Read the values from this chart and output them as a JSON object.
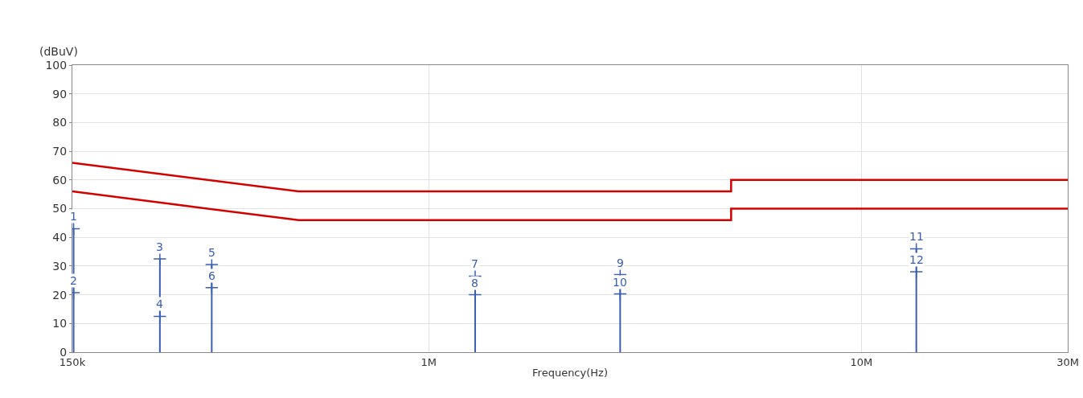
{
  "chart_data": {
    "type": "line",
    "xlabel": "Frequency(Hz)",
    "ylabel": "(dBuV)",
    "log": "x",
    "grid": true,
    "marker": "cross",
    "xlim": [
      150000,
      30000000
    ],
    "xticks": [
      {
        "value": 150000,
        "label": "150k"
      },
      {
        "value": 1000000,
        "label": "1M"
      },
      {
        "value": 10000000,
        "label": "10M"
      },
      {
        "value": 30000000,
        "label": "30M"
      }
    ],
    "ylim": [
      0,
      100
    ],
    "yticks": [
      0,
      10,
      20,
      30,
      40,
      50,
      60,
      70,
      80,
      90,
      100
    ],
    "series": [
      {
        "color": "#d40000",
        "x": [
          150000,
          500000,
          5000000,
          5000000,
          30000000
        ],
        "values": [
          66,
          56,
          56,
          60,
          60
        ],
        "marker": "none"
      },
      {
        "color": "#d40000",
        "x": [
          150000,
          500000,
          5000000,
          5000000,
          30000000
        ],
        "values": [
          56,
          46,
          46,
          50,
          50
        ],
        "marker": "none"
      },
      {
        "type": "lollipop",
        "color": "#3a5fb0",
        "x": [
          151000,
          239000,
          315000,
          1280000,
          2770000,
          13400000
        ],
        "values": [
          43,
          32.5,
          30.5,
          26.5,
          27,
          36
        ]
      },
      {
        "type": "scatter",
        "color": "#3a5fb0",
        "x": [
          151000,
          239000,
          315000,
          1280000,
          2770000,
          13400000
        ],
        "values": [
          20.7,
          12.5,
          22.5,
          20,
          20.3,
          28
        ]
      }
    ],
    "annotations": [
      {
        "text": "1",
        "x": 151000,
        "y": 43
      },
      {
        "text": "2",
        "x": 151000,
        "y": 20.7
      },
      {
        "text": "3",
        "x": 239000,
        "y": 32.5
      },
      {
        "text": "4",
        "x": 239000,
        "y": 12.5
      },
      {
        "text": "5",
        "x": 315000,
        "y": 30.5
      },
      {
        "text": "6",
        "x": 315000,
        "y": 22.5
      },
      {
        "text": "7",
        "x": 1280000,
        "y": 26.5
      },
      {
        "text": "8",
        "x": 1280000,
        "y": 20
      },
      {
        "text": "9",
        "x": 2770000,
        "y": 27
      },
      {
        "text": "10",
        "x": 2770000,
        "y": 20.3
      },
      {
        "text": "11",
        "x": 13400000,
        "y": 36
      },
      {
        "text": "12",
        "x": 13400000,
        "y": 28
      }
    ]
  }
}
